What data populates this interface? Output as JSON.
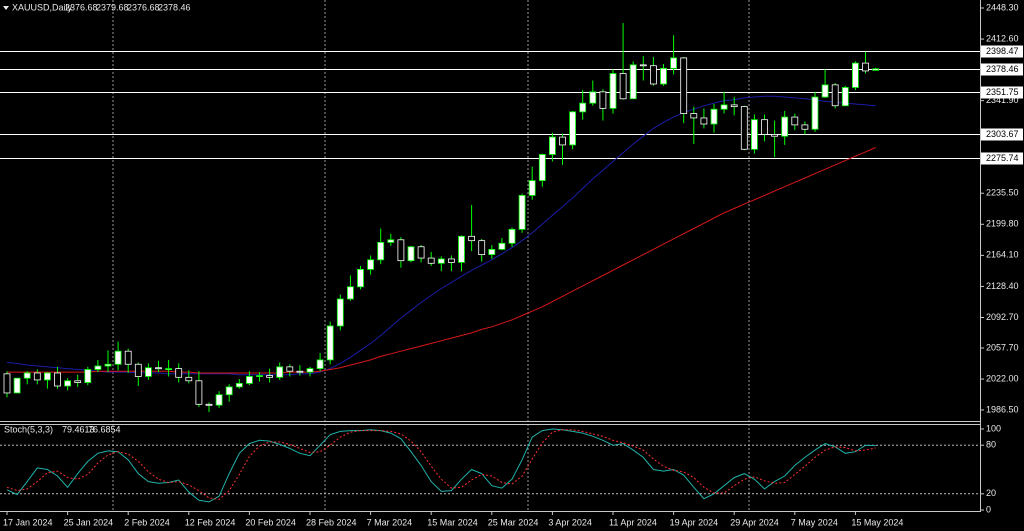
{
  "chart_data": [
    {
      "type": "candlestick",
      "title": "XAUUSD,Daily",
      "categories": [
        "17 Jan 2024",
        null,
        null,
        null,
        null,
        null,
        "25 Jan 2024",
        null,
        null,
        null,
        null,
        null,
        "2 Feb 2024",
        null,
        null,
        null,
        null,
        null,
        "12 Feb 2024",
        null,
        null,
        null,
        null,
        null,
        "20 Feb 2024",
        null,
        null,
        null,
        null,
        null,
        "28 Feb 2024",
        null,
        null,
        null,
        null,
        null,
        "7 Mar 2024",
        null,
        null,
        null,
        null,
        null,
        "15 Mar 2024",
        null,
        null,
        null,
        null,
        null,
        "25 Mar 2024",
        null,
        null,
        null,
        null,
        null,
        "3 Apr 2024",
        null,
        null,
        null,
        null,
        null,
        "11 Apr 2024",
        null,
        null,
        null,
        null,
        null,
        "19 Apr 2024",
        null,
        null,
        null,
        null,
        null,
        "29 Apr 2024",
        null,
        null,
        null,
        null,
        null,
        "7 May 2024",
        null,
        null,
        null,
        null,
        null,
        "15 May 2024",
        null,
        null
      ],
      "open": [
        2028,
        2006,
        2023,
        2029,
        2021,
        2029,
        2014,
        2020,
        2018,
        2033,
        2037,
        2039,
        2054,
        2039,
        2025,
        2035,
        2034,
        2034,
        2024,
        2020,
        1993,
        1992,
        2004,
        2013,
        2017,
        2025,
        2026,
        2024,
        2036,
        2031,
        2030,
        2034,
        2044,
        2083,
        2114,
        2128,
        2148,
        2159,
        2179,
        2182,
        2158,
        2174,
        2161,
        2155,
        2160,
        2156,
        2186,
        2181,
        2165,
        2171,
        2178,
        2194,
        2233,
        2250,
        2280,
        2300,
        2291,
        2329,
        2339,
        2352,
        2333,
        2373,
        2344,
        2383,
        2382,
        2361,
        2379,
        2391,
        2327,
        2322,
        2315,
        2332,
        2337,
        2335,
        2286,
        2320,
        2303,
        2301,
        2323,
        2314,
        2309,
        2346,
        2360,
        2336,
        2357,
        2385,
        2376.68
      ],
      "high": [
        2031,
        2023,
        2031,
        2033,
        2030,
        2036,
        2023,
        2027,
        2036,
        2044,
        2055,
        2065,
        2057,
        2041,
        2040,
        2043,
        2044,
        2040,
        2032,
        2031,
        1995,
        2008,
        2016,
        2022,
        2031,
        2030,
        2034,
        2041,
        2039,
        2038,
        2036,
        2052,
        2088,
        2119,
        2141,
        2152,
        2164,
        2195,
        2189,
        2185,
        2175,
        2176,
        2168,
        2163,
        2164,
        2187,
        2222,
        2183,
        2176,
        2184,
        2196,
        2235,
        2266,
        2281,
        2305,
        2304,
        2330,
        2354,
        2365,
        2355,
        2378,
        2431,
        2387,
        2393,
        2392,
        2384,
        2417,
        2392,
        2335,
        2333,
        2338,
        2352,
        2346,
        2336,
        2326,
        2326,
        2319,
        2330,
        2327,
        2318,
        2352,
        2378,
        2362,
        2359,
        2387,
        2398,
        2379.68
      ],
      "low": [
        2001,
        2006,
        2016,
        2016,
        2011,
        2011,
        2009,
        2013,
        2015,
        2030,
        2030,
        2032,
        2029,
        2014,
        2021,
        2030,
        2025,
        2018,
        2017,
        1990,
        1984,
        1989,
        1996,
        2011,
        2015,
        2019,
        2018,
        2021,
        2025,
        2026,
        2025,
        2031,
        2039,
        2078,
        2112,
        2125,
        2142,
        2154,
        2175,
        2150,
        2156,
        2156,
        2152,
        2146,
        2146,
        2146,
        2169,
        2157,
        2160,
        2170,
        2174,
        2190,
        2228,
        2243,
        2272,
        2268,
        2286,
        2320,
        2336,
        2319,
        2327,
        2343,
        2344,
        2365,
        2359,
        2359,
        2372,
        2316,
        2292,
        2310,
        2305,
        2327,
        2325,
        2285,
        2281,
        2295,
        2277,
        2291,
        2308,
        2303,
        2306,
        2345,
        2333,
        2336,
        2354,
        2373,
        2376.68
      ],
      "close": [
        2006,
        2023,
        2029,
        2021,
        2029,
        2014,
        2020,
        2018,
        2033,
        2037,
        2039,
        2054,
        2039,
        2025,
        2035,
        2034,
        2034,
        2024,
        2020,
        1993,
        1992,
        2004,
        2013,
        2017,
        2025,
        2026,
        2024,
        2036,
        2031,
        2030,
        2034,
        2044,
        2083,
        2114,
        2128,
        2148,
        2159,
        2179,
        2182,
        2158,
        2174,
        2161,
        2155,
        2160,
        2156,
        2186,
        2181,
        2165,
        2171,
        2178,
        2194,
        2233,
        2250,
        2280,
        2300,
        2291,
        2329,
        2339,
        2352,
        2333,
        2373,
        2344,
        2383,
        2382,
        2361,
        2379,
        2391,
        2327,
        2322,
        2315,
        2332,
        2337,
        2335,
        2286,
        2320,
        2303,
        2301,
        2323,
        2314,
        2309,
        2346,
        2360,
        2336,
        2357,
        2385,
        2376,
        2378.46
      ],
      "up_color": "#ffffff",
      "down_color": "#000000",
      "wick_color": "#00ff00",
      "lines": [
        {
          "color": "#1c1ca8",
          "values": [
            2041,
            2040,
            2038,
            2037,
            2036,
            2035,
            2034,
            2033,
            2032,
            2031,
            2030,
            2030,
            2030,
            2029,
            2029,
            2029,
            2028,
            2028,
            2028,
            2028,
            2028,
            2028,
            2028,
            2027,
            2027,
            2027,
            2027,
            2027,
            2027,
            2028,
            2028,
            2030,
            2034,
            2040,
            2047,
            2055,
            2063,
            2072,
            2082,
            2092,
            2101,
            2110,
            2118,
            2126,
            2133,
            2140,
            2147,
            2153,
            2159,
            2166,
            2173,
            2181,
            2190,
            2200,
            2210,
            2220,
            2230,
            2241,
            2252,
            2262,
            2272,
            2282,
            2292,
            2301,
            2310,
            2317,
            2323,
            2328,
            2332,
            2336,
            2339,
            2342,
            2343,
            2345,
            2346,
            2347,
            2347,
            2346,
            2345,
            2344,
            2343,
            2341,
            2340,
            2339,
            2338,
            2337,
            2336
          ]
        },
        {
          "color": "#d81818",
          "values": [
            2030,
            2030,
            2030,
            2030,
            2030,
            2030,
            2030,
            2030,
            2030,
            2031,
            2031,
            2031,
            2031,
            2031,
            2031,
            2031,
            2031,
            2030,
            2030,
            2029,
            2029,
            2029,
            2029,
            2029,
            2029,
            2029,
            2029,
            2029,
            2030,
            2030,
            2030,
            2031,
            2033,
            2035,
            2038,
            2041,
            2044,
            2048,
            2051,
            2054,
            2057,
            2060,
            2063,
            2066,
            2069,
            2072,
            2075,
            2079,
            2082,
            2086,
            2090,
            2095,
            2100,
            2105,
            2111,
            2117,
            2123,
            2129,
            2135,
            2141,
            2147,
            2153,
            2159,
            2165,
            2171,
            2177,
            2183,
            2189,
            2195,
            2201,
            2207,
            2213,
            2218,
            2223,
            2228,
            2233,
            2238,
            2243,
            2248,
            2253,
            2258,
            2263,
            2268,
            2273,
            2278,
            2283,
            2288
          ]
        }
      ],
      "ylim": [
        1973.8,
        2457.5
      ],
      "yticks": [
        {
          "value": 1986.5,
          "label": "1986.50"
        },
        {
          "value": 2022,
          "label": "2022.00"
        },
        {
          "value": 2057.7,
          "label": "2057.70"
        },
        {
          "value": 2092.7,
          "label": "2092.70"
        },
        {
          "value": 2128.4,
          "label": "2128.40"
        },
        {
          "value": 2164.1,
          "label": "2164.10"
        },
        {
          "value": 2199.8,
          "label": "2199.80"
        },
        {
          "value": 2235.5,
          "label": "2235.50"
        },
        {
          "value": 2341.9,
          "label": "2341.90"
        },
        {
          "value": 2412.6,
          "label": "2412.60"
        },
        {
          "value": 2448.3,
          "label": "2448.30"
        }
      ],
      "levels": [
        2398.47,
        2378.46,
        2351.75,
        2303.67,
        2275.74
      ],
      "level_color": "#ffffff"
    },
    {
      "type": "line",
      "title": "Stoch(5,3,3)",
      "series": [
        {
          "color": "#20b2aa",
          "values": [
            25,
            19,
            35,
            52,
            50,
            42,
            28,
            45,
            60,
            70,
            73,
            72,
            62,
            45,
            35,
            33,
            34,
            37,
            22,
            12,
            10,
            17,
            45,
            70,
            82,
            86,
            85,
            81,
            76,
            70,
            67,
            80,
            93,
            97,
            98,
            98,
            99,
            98,
            95,
            88,
            72,
            55,
            35,
            23,
            24,
            38,
            50,
            45,
            30,
            27,
            38,
            62,
            90,
            98,
            100,
            99,
            97,
            95,
            91,
            86,
            80,
            82,
            74,
            65,
            50,
            48,
            50,
            43,
            28,
            14,
            20,
            30,
            40,
            45,
            38,
            26,
            35,
            42,
            55,
            65,
            74,
            82,
            78,
            70,
            72,
            80,
            79.4613
          ]
        },
        {
          "color": "#ff3030",
          "dashed": true,
          "values": [
            28,
            24,
            26,
            35,
            46,
            48,
            40,
            38,
            44,
            58,
            68,
            72,
            69,
            60,
            47,
            38,
            34,
            35,
            31,
            24,
            15,
            13,
            24,
            44,
            66,
            79,
            84,
            84,
            81,
            76,
            71,
            72,
            80,
            90,
            96,
            98,
            98,
            98,
            97,
            94,
            85,
            72,
            54,
            38,
            27,
            28,
            37,
            44,
            42,
            34,
            32,
            42,
            63,
            83,
            96,
            99,
            99,
            97,
            94,
            91,
            86,
            83,
            79,
            74,
            63,
            54,
            49,
            47,
            40,
            28,
            21,
            21,
            30,
            38,
            41,
            36,
            33,
            34,
            44,
            54,
            65,
            74,
            78,
            77,
            73,
            74,
            76.6854
          ]
        }
      ],
      "ylim": [
        0,
        100
      ],
      "yticks": [
        0,
        20,
        80,
        100
      ]
    }
  ]
}
